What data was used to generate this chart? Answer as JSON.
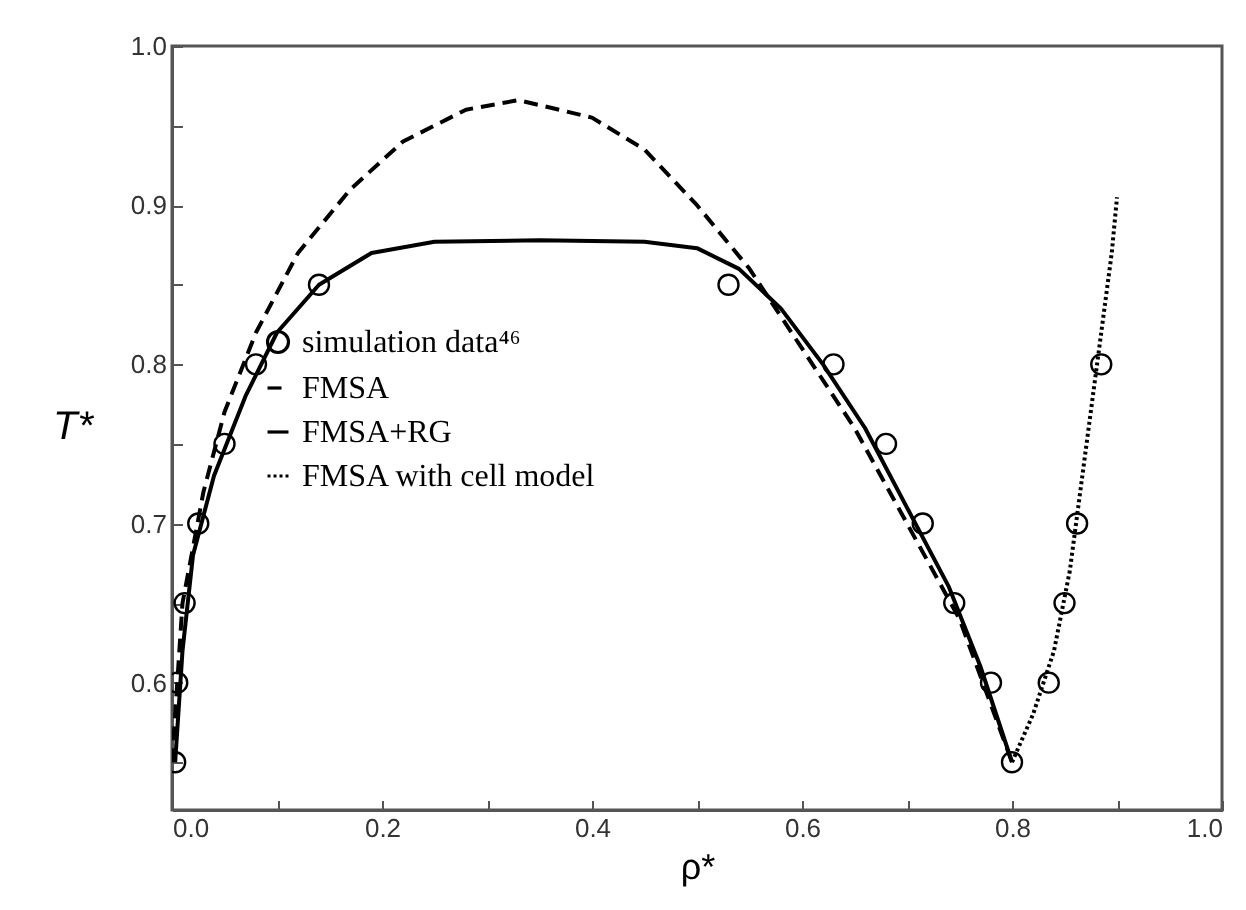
{
  "chart_data": {
    "type": "line",
    "xlabel": "ρ*",
    "ylabel": "T*",
    "xlim": [
      0,
      1.0
    ],
    "ylim": [
      0.52,
      1.0
    ],
    "xticks": [
      {
        "value": 0,
        "label": "0.0"
      },
      {
        "value": 0.1,
        "label": null
      },
      0.2,
      {
        "value": 0.3,
        "label": null
      },
      0.4,
      {
        "value": 0.5,
        "label": null
      },
      0.6,
      {
        "value": 0.7,
        "label": null
      },
      0.8,
      {
        "value": 0.9,
        "label": null
      },
      {
        "value": 1.0,
        "label": "1.0"
      }
    ],
    "yticks": [
      {
        "value": 0.55,
        "label": null
      },
      0.6,
      {
        "value": 0.65,
        "label": null
      },
      0.7,
      {
        "value": 0.75,
        "label": null
      },
      0.8,
      {
        "value": 0.85,
        "label": null
      },
      0.9,
      {
        "value": 0.95,
        "label": null
      },
      {
        "value": 1.0,
        "label": "1.0"
      }
    ],
    "grid": false,
    "legend": "left",
    "series": [
      {
        "name": "simulation data⁴⁶",
        "type": "scatter",
        "marker": "circle",
        "color": "#000000",
        "x": [
          0.003,
          0.005,
          0.012,
          0.025,
          0.05,
          0.08,
          0.14,
          0.53,
          0.63,
          0.68,
          0.715,
          0.745,
          0.78,
          0.8,
          0.835,
          0.85,
          0.862,
          0.885
        ],
        "values": [
          0.55,
          0.6,
          0.65,
          0.7,
          0.75,
          0.8,
          0.85,
          0.85,
          0.8,
          0.75,
          0.7,
          0.65,
          0.6,
          0.55,
          0.6,
          0.65,
          0.7,
          0.8
        ]
      },
      {
        "name": "FMSA",
        "type": "line",
        "line_style": "dashed",
        "color": "#000000",
        "x": [
          0.0,
          0.01,
          0.03,
          0.05,
          0.08,
          0.12,
          0.17,
          0.22,
          0.28,
          0.33,
          0.4,
          0.45,
          0.5,
          0.55,
          0.6,
          0.65,
          0.7,
          0.75,
          0.8
        ],
        "values": [
          0.55,
          0.65,
          0.72,
          0.77,
          0.82,
          0.87,
          0.91,
          0.94,
          0.96,
          0.966,
          0.955,
          0.935,
          0.9,
          0.86,
          0.81,
          0.76,
          0.7,
          0.64,
          0.55
        ]
      },
      {
        "name": "FMSA+RG",
        "type": "line",
        "line_style": "solid",
        "color": "#000000",
        "x": [
          0.003,
          0.01,
          0.02,
          0.04,
          0.07,
          0.1,
          0.14,
          0.19,
          0.25,
          0.35,
          0.45,
          0.5,
          0.54,
          0.58,
          0.62,
          0.66,
          0.7,
          0.74,
          0.77,
          0.8
        ],
        "values": [
          0.55,
          0.62,
          0.68,
          0.73,
          0.78,
          0.82,
          0.85,
          0.87,
          0.877,
          0.878,
          0.877,
          0.873,
          0.86,
          0.835,
          0.8,
          0.76,
          0.71,
          0.66,
          0.61,
          0.55
        ]
      },
      {
        "name": "FMSA with cell model",
        "type": "line",
        "line_style": "dotted",
        "color": "#000000",
        "x": [
          0.8,
          0.82,
          0.84,
          0.855,
          0.865,
          0.875,
          0.885,
          0.895,
          0.9
        ],
        "values": [
          0.55,
          0.58,
          0.62,
          0.67,
          0.72,
          0.77,
          0.82,
          0.87,
          0.905
        ]
      }
    ]
  }
}
